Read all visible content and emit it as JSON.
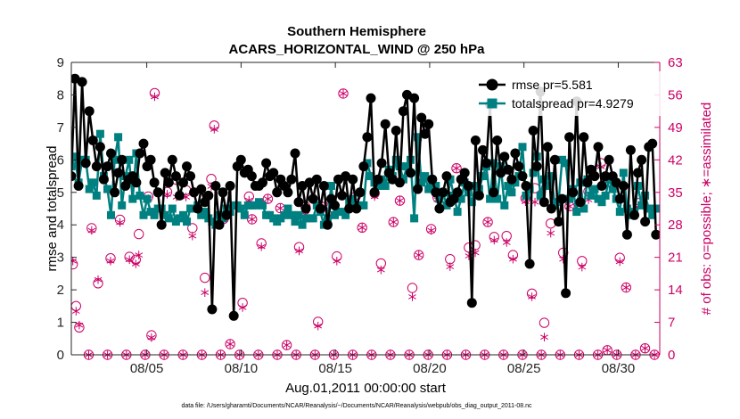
{
  "chart_data": {
    "type": "line",
    "title": "Southern Hemisphere",
    "subtitle": "ACARS_HORIZONTAL_WIND @ 250 hPa",
    "xlabel": "Aug.01,2011 00:00:00 start",
    "ylabel": "rmse and totalspread",
    "y2label": "# of obs: o=possible; ∗=assimilated",
    "footnote": "data file: /Users/gharamti/Documents/NCAR/Reanalysis/~/Documents/NCAR/Reanalysis/webpub/obs_diag_output_2011-08.nc",
    "xlim": [
      1.0,
      32.2
    ],
    "ylim": [
      0,
      9
    ],
    "y2lim": [
      0,
      63
    ],
    "x_ticks": [
      5,
      10,
      15,
      20,
      25,
      30
    ],
    "x_tick_labels": [
      "08/05",
      "08/10",
      "08/15",
      "08/20",
      "08/25",
      "08/30"
    ],
    "y_ticks": [
      0,
      1,
      2,
      3,
      4,
      5,
      6,
      7,
      8,
      9
    ],
    "y_tick_labels": [
      "0",
      "1",
      "2",
      "3",
      "4",
      "5",
      "6",
      "7",
      "8",
      "9"
    ],
    "y2_ticks": [
      0,
      7,
      14,
      21,
      28,
      35,
      42,
      49,
      56,
      63
    ],
    "y2_tick_labels": [
      "0",
      "7",
      "14",
      "21",
      "28",
      "35",
      "42",
      "49",
      "56",
      "63"
    ],
    "grid": false,
    "legend_position": "top-right",
    "colors": {
      "rmse": "#000000",
      "spread": "#008080",
      "obs": "#cc0066"
    },
    "series": [
      {
        "name": "rmse pr=5.581",
        "axis": "left",
        "values": [
          5.5,
          8.5,
          5.2,
          8.4,
          5.9,
          7.5,
          6.6,
          5.8,
          6.4,
          5.4,
          5.8,
          6.2,
          5.0,
          5.6,
          6.0,
          5.2,
          5.4,
          5.5,
          5.3,
          6.2,
          6.5,
          5.8,
          6.0,
          5.3,
          5.0,
          4.0,
          5.6,
          5.3,
          6.0,
          5.5,
          4.9,
          5.3,
          5.8,
          5.5,
          5.0,
          4.5,
          5.1,
          4.7,
          4.9,
          1.4,
          5.2,
          4.0,
          5.0,
          4.3,
          5.2,
          1.2,
          5.8,
          6.0,
          5.6,
          5.7,
          5.5,
          5.2,
          5.2,
          5.3,
          5.9,
          5.5,
          5.6,
          5.0,
          5.4,
          5.2,
          5.0,
          5.4,
          6.2,
          4.7,
          5.2,
          4.5,
          5.3,
          4.8,
          5.4,
          4.5,
          5.2,
          4.0,
          4.8,
          4.6,
          5.4,
          4.9,
          5.5,
          4.5,
          5.4,
          4.5,
          5.0,
          5.8,
          6.7,
          7.9,
          5.0,
          5.4,
          5.9,
          7.1,
          5.6,
          5.4,
          6.9,
          5.3,
          7.5,
          8.0,
          5.6,
          7.9,
          5.1,
          7.3,
          6.8,
          7.1,
          5.4,
          5.0,
          4.5,
          5.0,
          5.5,
          4.7,
          4.8,
          5.0,
          5.4,
          5.6,
          5.2,
          1.6,
          6.6,
          4.9,
          6.3,
          5.9,
          7.7,
          5.0,
          6.6,
          5.6,
          6.1,
          5.7,
          5.4,
          6.2,
          5.8,
          5.5,
          5.2,
          2.8,
          6.9,
          5.8,
          8.1,
          4.7,
          6.4,
          4.5,
          6.0,
          4.1,
          4.8,
          1.9,
          6.7,
          5.0,
          7.8,
          4.7,
          6.7,
          5.3,
          5.7,
          5.5,
          6.4,
          5.2,
          5.5,
          6.0,
          5.5,
          5.3,
          4.8,
          5.2,
          3.7,
          6.3,
          4.3,
          5.6,
          6.0,
          4.1,
          6.4,
          6.5,
          3.7
        ]
      },
      {
        "name": "totalspread pr=4.9279",
        "axis": "left",
        "values": [
          5.8,
          6.1,
          5.3,
          6.0,
          6.0,
          5.1,
          5.3,
          4.9,
          6.8,
          5.5,
          5.1,
          4.3,
          6.0,
          6.7,
          4.6,
          5.5,
          6.0,
          4.8,
          6.2,
          4.9,
          4.3,
          4.8,
          4.4,
          4.3,
          4.5,
          4.5,
          4.3,
          4.2,
          4.5,
          4.1,
          4.2,
          4.3,
          4.1,
          4.5,
          4.5,
          4.6,
          4.3,
          4.4,
          4.2,
          4.1,
          4.0,
          4.3,
          4.2,
          4.5,
          4.4,
          4.6,
          4.6,
          4.5,
          4.3,
          4.6,
          4.6,
          4.6,
          4.7,
          4.6,
          4.3,
          4.3,
          4.2,
          4.1,
          4.2,
          4.3,
          4.5,
          4.3,
          4.1,
          4.3,
          4.0,
          4.2,
          4.2,
          4.2,
          4.6,
          4.4,
          4.0,
          4.2,
          5.2,
          4.3,
          4.4,
          4.4,
          4.3,
          4.7,
          4.8,
          4.6,
          4.6,
          4.6,
          5.9,
          5.5,
          5.3,
          5.2,
          5.4,
          5.2,
          5.7,
          5.5,
          6.0,
          5.8,
          5.4,
          5.8,
          6.0,
          4.2,
          6.7,
          5.3,
          5.5,
          5.1,
          5.3,
          5.2,
          4.8,
          5.0,
          4.6,
          5.4,
          4.9,
          4.4,
          4.8,
          5.3,
          5.0,
          4.7,
          5.2,
          5.1,
          5.5,
          5.8,
          4.8,
          5.9,
          4.8,
          5.8,
          4.6,
          5.2,
          5.0,
          5.3,
          5.5,
          6.4,
          4.9,
          5.1,
          5.6,
          6.1,
          4.9,
          5.4,
          5.2,
          5.5,
          4.6,
          4.7,
          6.0,
          5.9,
          4.8,
          5.1,
          4.4,
          5.3,
          4.5,
          5.4,
          4.9,
          5.1,
          4.8,
          4.7,
          4.9,
          5.4,
          5.1,
          4.8,
          4.4,
          5.6,
          4.5,
          4.3,
          4.4,
          5.2,
          4.6,
          4.9,
          4.5,
          4.3,
          4.5
        ]
      }
    ],
    "obs_possible": [
      {
        "x": 1.08,
        "y": 19.5
      },
      {
        "x": 1.25,
        "y": 10.5
      },
      {
        "x": 1.42,
        "y": 5.9
      },
      {
        "x": 1.92,
        "y": 0
      },
      {
        "x": 2.08,
        "y": 27.3
      },
      {
        "x": 2.42,
        "y": 15.4
      },
      {
        "x": 2.92,
        "y": 0
      },
      {
        "x": 3.08,
        "y": 20.8
      },
      {
        "x": 3.58,
        "y": 29.1
      },
      {
        "x": 3.92,
        "y": 0
      },
      {
        "x": 4.08,
        "y": 21.1
      },
      {
        "x": 4.42,
        "y": 20.5
      },
      {
        "x": 4.58,
        "y": 26.0
      },
      {
        "x": 4.92,
        "y": 0
      },
      {
        "x": 5.08,
        "y": 34.1
      },
      {
        "x": 5.25,
        "y": 4.2
      },
      {
        "x": 5.42,
        "y": 56.4
      },
      {
        "x": 5.92,
        "y": 0
      },
      {
        "x": 6.08,
        "y": 35.1
      },
      {
        "x": 6.58,
        "y": 37.7
      },
      {
        "x": 6.92,
        "y": 0
      },
      {
        "x": 7.08,
        "y": 35.5
      },
      {
        "x": 7.42,
        "y": 27.3
      },
      {
        "x": 7.92,
        "y": 0
      },
      {
        "x": 8.08,
        "y": 16.6
      },
      {
        "x": 8.42,
        "y": 37.9
      },
      {
        "x": 8.58,
        "y": 49.4
      },
      {
        "x": 8.92,
        "y": 0
      },
      {
        "x": 9.08,
        "y": 29.3
      },
      {
        "x": 9.42,
        "y": 2.3
      },
      {
        "x": 9.92,
        "y": 0
      },
      {
        "x": 10.08,
        "y": 11.2
      },
      {
        "x": 10.42,
        "y": 34.1
      },
      {
        "x": 10.58,
        "y": 29.2
      },
      {
        "x": 10.92,
        "y": 0
      },
      {
        "x": 11.08,
        "y": 24.0
      },
      {
        "x": 11.42,
        "y": 33.6
      },
      {
        "x": 11.92,
        "y": 0
      },
      {
        "x": 12.08,
        "y": 31.6
      },
      {
        "x": 12.42,
        "y": 2.1
      },
      {
        "x": 12.92,
        "y": 0
      },
      {
        "x": 13.08,
        "y": 23.2
      },
      {
        "x": 13.42,
        "y": 31.9
      },
      {
        "x": 13.92,
        "y": 0
      },
      {
        "x": 14.08,
        "y": 7.1
      },
      {
        "x": 14.42,
        "y": 31.9
      },
      {
        "x": 14.92,
        "y": 0
      },
      {
        "x": 15.08,
        "y": 21.2
      },
      {
        "x": 15.42,
        "y": 56.3
      },
      {
        "x": 15.92,
        "y": 0
      },
      {
        "x": 16.08,
        "y": 34.1
      },
      {
        "x": 16.42,
        "y": 27.4
      },
      {
        "x": 16.92,
        "y": 0
      },
      {
        "x": 17.08,
        "y": 34.8
      },
      {
        "x": 17.42,
        "y": 19.7
      },
      {
        "x": 17.92,
        "y": 0
      },
      {
        "x": 18.08,
        "y": 28.6
      },
      {
        "x": 18.42,
        "y": 33.2
      },
      {
        "x": 18.92,
        "y": 0
      },
      {
        "x": 19.08,
        "y": 14.4
      },
      {
        "x": 19.42,
        "y": 21.5
      },
      {
        "x": 19.92,
        "y": 0
      },
      {
        "x": 20.08,
        "y": 27.1
      },
      {
        "x": 20.42,
        "y": 33.9
      },
      {
        "x": 20.92,
        "y": 0
      },
      {
        "x": 21.08,
        "y": 20.6
      },
      {
        "x": 21.42,
        "y": 40.2
      },
      {
        "x": 21.92,
        "y": 0
      },
      {
        "x": 22.08,
        "y": 23.1
      },
      {
        "x": 22.42,
        "y": 23.6
      },
      {
        "x": 22.92,
        "y": 0
      },
      {
        "x": 23.08,
        "y": 28.6
      },
      {
        "x": 23.42,
        "y": 25.4
      },
      {
        "x": 23.92,
        "y": 0
      },
      {
        "x": 24.08,
        "y": 25.6
      },
      {
        "x": 24.42,
        "y": 21.5
      },
      {
        "x": 24.92,
        "y": 0
      },
      {
        "x": 25.08,
        "y": 33.7
      },
      {
        "x": 25.42,
        "y": 13.2
      },
      {
        "x": 25.58,
        "y": 35.9
      },
      {
        "x": 25.92,
        "y": 0
      },
      {
        "x": 26.08,
        "y": 6.9
      },
      {
        "x": 26.42,
        "y": 28.3
      },
      {
        "x": 26.92,
        "y": 0
      },
      {
        "x": 27.08,
        "y": 22.0
      },
      {
        "x": 27.42,
        "y": 32.0
      },
      {
        "x": 27.92,
        "y": 0
      },
      {
        "x": 28.08,
        "y": 20.2
      },
      {
        "x": 28.42,
        "y": 35.2
      },
      {
        "x": 28.92,
        "y": 0
      },
      {
        "x": 29.08,
        "y": 41.3
      },
      {
        "x": 29.42,
        "y": 1.0
      },
      {
        "x": 29.92,
        "y": 0
      },
      {
        "x": 30.08,
        "y": 20.9
      },
      {
        "x": 30.42,
        "y": 14.5
      },
      {
        "x": 30.92,
        "y": 0
      },
      {
        "x": 31.08,
        "y": 32.7
      },
      {
        "x": 31.42,
        "y": 1.4
      },
      {
        "x": 31.92,
        "y": 0
      }
    ],
    "obs_assimilated": [
      {
        "x": 1.08,
        "y": 20.2
      },
      {
        "x": 1.25,
        "y": 9.4
      },
      {
        "x": 1.42,
        "y": 6.4
      },
      {
        "x": 1.92,
        "y": 0
      },
      {
        "x": 2.08,
        "y": 26.8
      },
      {
        "x": 2.42,
        "y": 16.2
      },
      {
        "x": 2.92,
        "y": 0
      },
      {
        "x": 3.08,
        "y": 20.2
      },
      {
        "x": 3.58,
        "y": 28.5
      },
      {
        "x": 3.92,
        "y": 0
      },
      {
        "x": 4.08,
        "y": 20.5
      },
      {
        "x": 4.42,
        "y": 19.6
      },
      {
        "x": 4.58,
        "y": 21.5
      },
      {
        "x": 4.92,
        "y": 0
      },
      {
        "x": 5.08,
        "y": 33.6
      },
      {
        "x": 5.25,
        "y": 3.7
      },
      {
        "x": 5.42,
        "y": 55.6
      },
      {
        "x": 5.92,
        "y": 0
      },
      {
        "x": 6.08,
        "y": 34.6
      },
      {
        "x": 6.58,
        "y": 34.0
      },
      {
        "x": 6.92,
        "y": 0
      },
      {
        "x": 7.08,
        "y": 34.0
      },
      {
        "x": 7.42,
        "y": 25.6
      },
      {
        "x": 7.92,
        "y": 0
      },
      {
        "x": 8.08,
        "y": 13.4
      },
      {
        "x": 8.42,
        "y": 36.3
      },
      {
        "x": 8.58,
        "y": 48.6
      },
      {
        "x": 8.92,
        "y": 0
      },
      {
        "x": 9.08,
        "y": 29.3
      },
      {
        "x": 9.42,
        "y": 2.3
      },
      {
        "x": 9.92,
        "y": 0
      },
      {
        "x": 10.08,
        "y": 10.2
      },
      {
        "x": 10.42,
        "y": 33.3
      },
      {
        "x": 10.58,
        "y": 29.2
      },
      {
        "x": 10.92,
        "y": 0
      },
      {
        "x": 11.08,
        "y": 23.3
      },
      {
        "x": 11.42,
        "y": 33.6
      },
      {
        "x": 11.92,
        "y": 0
      },
      {
        "x": 12.08,
        "y": 31.6
      },
      {
        "x": 12.42,
        "y": 2.1
      },
      {
        "x": 12.92,
        "y": 0
      },
      {
        "x": 13.08,
        "y": 22.4
      },
      {
        "x": 13.42,
        "y": 30.2
      },
      {
        "x": 13.92,
        "y": 0
      },
      {
        "x": 14.08,
        "y": 6.2
      },
      {
        "x": 14.42,
        "y": 31.9
      },
      {
        "x": 14.92,
        "y": 0
      },
      {
        "x": 15.08,
        "y": 20.2
      },
      {
        "x": 15.42,
        "y": 56.3
      },
      {
        "x": 15.92,
        "y": 0
      },
      {
        "x": 16.08,
        "y": 33.3
      },
      {
        "x": 16.42,
        "y": 27.4
      },
      {
        "x": 16.92,
        "y": 0
      },
      {
        "x": 17.08,
        "y": 34.1
      },
      {
        "x": 17.42,
        "y": 18.3
      },
      {
        "x": 17.92,
        "y": 0
      },
      {
        "x": 18.08,
        "y": 28.6
      },
      {
        "x": 18.42,
        "y": 33.2
      },
      {
        "x": 18.92,
        "y": 0
      },
      {
        "x": 19.08,
        "y": 12.5
      },
      {
        "x": 19.42,
        "y": 21.5
      },
      {
        "x": 19.92,
        "y": 0
      },
      {
        "x": 20.08,
        "y": 26.8
      },
      {
        "x": 20.42,
        "y": 33.4
      },
      {
        "x": 20.92,
        "y": 0
      },
      {
        "x": 21.08,
        "y": 19.0
      },
      {
        "x": 21.42,
        "y": 40.2
      },
      {
        "x": 21.92,
        "y": 0
      },
      {
        "x": 22.08,
        "y": 21.3
      },
      {
        "x": 22.42,
        "y": 22.0
      },
      {
        "x": 22.92,
        "y": 0
      },
      {
        "x": 23.08,
        "y": 28.6
      },
      {
        "x": 23.42,
        "y": 24.7
      },
      {
        "x": 23.92,
        "y": 0
      },
      {
        "x": 24.08,
        "y": 24.2
      },
      {
        "x": 24.42,
        "y": 20.6
      },
      {
        "x": 24.92,
        "y": 0
      },
      {
        "x": 25.08,
        "y": 33.0
      },
      {
        "x": 25.42,
        "y": 12.5
      },
      {
        "x": 25.58,
        "y": 32.9
      },
      {
        "x": 25.92,
        "y": 0
      },
      {
        "x": 26.08,
        "y": 3.8
      },
      {
        "x": 26.42,
        "y": 26.2
      },
      {
        "x": 26.92,
        "y": 0
      },
      {
        "x": 27.08,
        "y": 20.6
      },
      {
        "x": 27.42,
        "y": 32.0
      },
      {
        "x": 27.92,
        "y": 0
      },
      {
        "x": 28.08,
        "y": 18.9
      },
      {
        "x": 28.42,
        "y": 33.4
      },
      {
        "x": 28.92,
        "y": 0
      },
      {
        "x": 29.08,
        "y": 40.5
      },
      {
        "x": 29.42,
        "y": 1.0
      },
      {
        "x": 29.92,
        "y": 0
      },
      {
        "x": 30.08,
        "y": 20.1
      },
      {
        "x": 30.42,
        "y": 14.5
      },
      {
        "x": 30.92,
        "y": 0
      },
      {
        "x": 31.08,
        "y": 32.2
      },
      {
        "x": 31.42,
        "y": 1.4
      },
      {
        "x": 31.92,
        "y": 0
      }
    ]
  }
}
